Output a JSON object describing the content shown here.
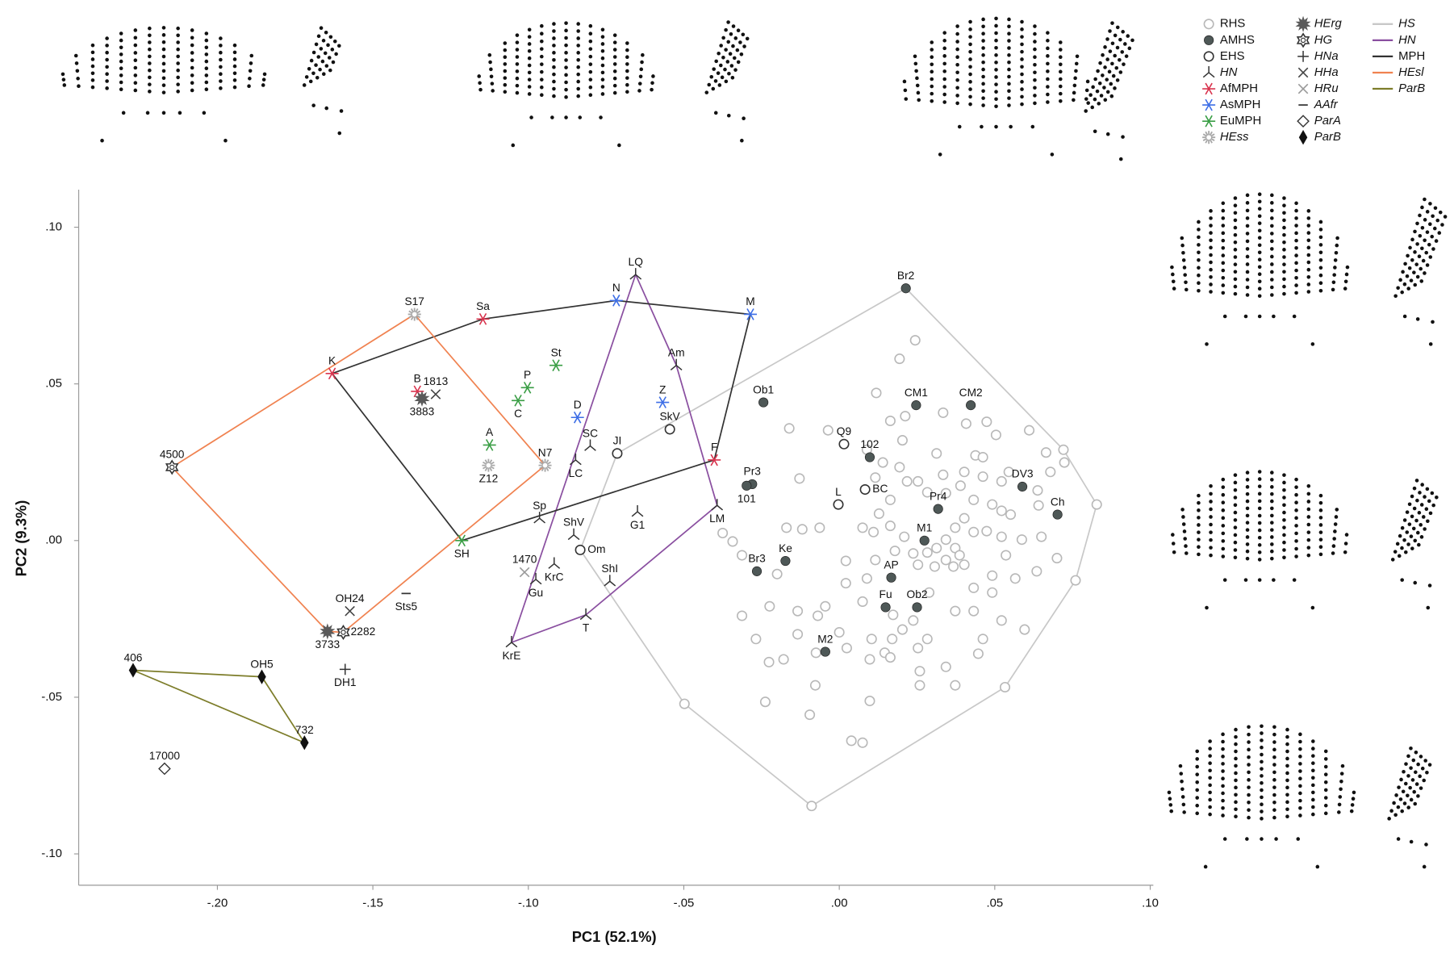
{
  "chart_data": {
    "type": "scatter",
    "xlabel": "PC1 (52.1%)",
    "ylabel": "PC2 (9.3%)",
    "xlim": [
      -0.2446,
      0.101
    ],
    "ylim": [
      -0.11,
      0.112
    ],
    "xticks": [
      {
        "value": -0.2,
        "label": "-.20"
      },
      {
        "value": -0.15,
        "label": "-.15"
      },
      {
        "value": -0.1,
        "label": "-.10"
      },
      {
        "value": -0.05,
        "label": "-.05"
      },
      {
        "value": 0,
        "label": ".00"
      },
      {
        "value": 0.05,
        "label": ".05"
      },
      {
        "value": 0.1,
        "label": ".10"
      }
    ],
    "yticks": [
      {
        "value": 0.1,
        "label": ".10"
      },
      {
        "value": 0.05,
        "label": ".05"
      },
      {
        "value": 0,
        "label": ".00"
      },
      {
        "value": -0.05,
        "label": "-.05"
      },
      {
        "value": -0.1,
        "label": "-.10"
      }
    ],
    "series": [
      {
        "name": "RHS",
        "marker": "circle-open",
        "color": "#b8b8b8",
        "italic": false,
        "x": [
          0.0244,
          0.0194,
          0.0119,
          0.0164,
          0.0212,
          -0.0161,
          -0.0036,
          0.0089,
          -0.0128,
          0.0203,
          0.0334,
          0.0408,
          0.0474,
          0.0504,
          0.0611,
          0.0665,
          0.0724,
          0.0438,
          0.0402,
          0.0462,
          0.0522,
          0.0545,
          0.0334,
          0.0253,
          0.0164,
          0.0116,
          0.0194,
          0.0218,
          0.0283,
          0.0343,
          0.039,
          0.0432,
          0.0492,
          0.0522,
          0.0551,
          0.0641,
          0.065,
          0.0587,
          0.0522,
          0.0474,
          0.0432,
          0.0402,
          0.0373,
          0.0343,
          0.0313,
          0.0373,
          0.0387,
          0.0402,
          0.0343,
          0.0283,
          0.0238,
          0.0253,
          0.0307,
          0.0367,
          0.0209,
          0.0164,
          0.0128,
          0.011,
          0.0116,
          0.0179,
          0.0075,
          0.0021,
          0.0021,
          0.0089,
          0.0075,
          0.0289,
          0.0432,
          0.0492,
          0.0566,
          0.0536,
          0.0492,
          0.0432,
          0.0373,
          0.0522,
          0.0596,
          0.0462,
          0.0283,
          0.0238,
          0.0173,
          0.0203,
          0.017,
          0.0104,
          0.0098,
          0.0146,
          0.0164,
          0.0253,
          0.0343,
          0.0259,
          0.0259,
          0.0373,
          0.0447,
          -0.0045,
          -0.0134,
          -0.0069,
          0.0,
          -0.0075,
          0.0024,
          -0.0134,
          -0.02,
          -0.0313,
          -0.0343,
          -0.0375,
          -0.0224,
          -0.0313,
          -0.0268,
          -0.0226,
          -0.0179,
          -0.0077,
          -0.0095,
          -0.0238,
          0.0098,
          0.0039,
          0.0075,
          -0.0063,
          -0.0119,
          -0.017,
          0.0635,
          0.07,
          0.0679,
          0.0638,
          0.0462,
          0.0313,
          0.014,
          0.0721,
          0.0828,
          0.076,
          0.0533,
          -0.0089,
          -0.0498
        ],
        "y": [
          0.0639,
          0.058,
          0.0471,
          0.0382,
          0.0397,
          0.0358,
          0.0352,
          0.029,
          0.0198,
          0.032,
          0.0408,
          0.0373,
          0.0379,
          0.0337,
          0.0352,
          0.0281,
          0.0249,
          0.0272,
          0.0219,
          0.0204,
          0.0189,
          0.0219,
          0.021,
          0.0189,
          0.013,
          0.0201,
          0.0234,
          0.0189,
          0.0154,
          0.0151,
          0.0175,
          0.013,
          0.0115,
          0.0095,
          0.0083,
          0.0112,
          0.0012,
          0.0003,
          0.0012,
          0.003,
          0.0027,
          0.0071,
          0.0041,
          0.0003,
          -0.0024,
          -0.0024,
          -0.0047,
          -0.0077,
          -0.0062,
          -0.0038,
          -0.0041,
          -0.0077,
          -0.0083,
          -0.0083,
          0.0012,
          0.0047,
          0.0086,
          0.0027,
          -0.0062,
          -0.0033,
          0.0041,
          -0.0065,
          -0.0136,
          -0.0121,
          -0.0195,
          -0.0166,
          -0.0151,
          -0.0112,
          -0.0121,
          -0.0047,
          -0.0166,
          -0.0225,
          -0.0225,
          -0.0255,
          -0.0284,
          -0.0314,
          -0.0314,
          -0.0255,
          -0.0237,
          -0.0284,
          -0.0314,
          -0.0314,
          -0.0379,
          -0.0358,
          -0.0373,
          -0.0343,
          -0.0403,
          -0.0417,
          -0.0462,
          -0.0462,
          -0.0361,
          -0.021,
          -0.0225,
          -0.024,
          -0.0293,
          -0.0358,
          -0.0343,
          -0.0299,
          -0.0107,
          -0.0047,
          -0.0003,
          0.0024,
          -0.021,
          -0.024,
          -0.0314,
          -0.0388,
          -0.0379,
          -0.0462,
          -0.0556,
          -0.0515,
          -0.0512,
          -0.0639,
          -0.0645,
          0.0041,
          0.0036,
          0.0041,
          -0.0098,
          -0.0056,
          0.0219,
          0.016,
          0.0266,
          0.0278,
          0.0249,
          0.029,
          0.0115,
          -0.0127,
          -0.0468,
          -0.0847,
          -0.0521
        ]
      },
      {
        "name": "AMHS",
        "marker": "circle-filled",
        "color": "#4e5857",
        "italic": false,
        "labels": [
          "Br2",
          "Ob1",
          "CM1",
          "CM2",
          "102",
          "Pr3",
          "101",
          "DV3",
          "Ch",
          "Pr4",
          "M1",
          "Ke",
          "Br3",
          "AP",
          "Fu",
          "Ob2",
          "M2"
        ],
        "x": [
          0.0214,
          -0.0244,
          0.0247,
          0.0423,
          0.0098,
          -0.028,
          -0.0298,
          0.0589,
          0.0702,
          0.0318,
          0.0274,
          -0.0173,
          -0.0265,
          0.0167,
          0.0149,
          0.025,
          -0.0045
        ],
        "y": [
          0.0805,
          0.0441,
          0.0432,
          0.0432,
          0.0266,
          0.018,
          0.0175,
          0.0172,
          0.0083,
          0.0101,
          0.0,
          -0.0065,
          -0.0098,
          -0.0118,
          -0.0213,
          -0.0213,
          -0.0355
        ]
      },
      {
        "name": "EHS",
        "marker": "circle-open",
        "color": "#333333",
        "italic": false,
        "labels": [
          "JI",
          "SkV",
          "Om",
          "Q9",
          "BC",
          "L"
        ],
        "x": [
          -0.0714,
          -0.0545,
          -0.0833,
          0.0015,
          0.0083,
          -0.0003
        ],
        "y": [
          0.0278,
          0.0355,
          -0.003,
          0.0308,
          0.0163,
          0.0115
        ]
      },
      {
        "name": "HN",
        "marker": "tri",
        "color": "#333333",
        "italic": true,
        "labels": [
          "LQ",
          "Am",
          "SC",
          "LC",
          "Sp",
          "ShV",
          "G1",
          "KrC",
          "Gu",
          "ShI",
          "T",
          "KrE",
          "LM"
        ],
        "x": [
          -0.0655,
          -0.0524,
          -0.0801,
          -0.0848,
          -0.0964,
          -0.0854,
          -0.0649,
          -0.0917,
          -0.0976,
          -0.0738,
          -0.0815,
          -0.1054,
          -0.0393
        ],
        "y": [
          0.0849,
          0.0559,
          0.0302,
          0.0257,
          0.0071,
          0.0018,
          0.0092,
          -0.0074,
          -0.0124,
          -0.013,
          -0.0237,
          -0.0325,
          0.0112
        ]
      },
      {
        "name": "AfMPH",
        "marker": "asterisk",
        "color": "#d9344e",
        "italic": false,
        "labels": [
          "Sa",
          "K",
          "B",
          "F"
        ],
        "x": [
          -0.1146,
          -0.1631,
          -0.1357,
          -0.0402
        ],
        "y": [
          0.0707,
          0.0533,
          0.0476,
          0.0257
        ]
      },
      {
        "name": "AsMPH",
        "marker": "asterisk",
        "color": "#3d6ee6",
        "italic": false,
        "labels": [
          "N",
          "M",
          "D",
          "Z"
        ],
        "x": [
          -0.0717,
          -0.0286,
          -0.0842,
          -0.0568
        ],
        "y": [
          0.0766,
          0.0722,
          0.0393,
          0.0441
        ]
      },
      {
        "name": "EuMPH",
        "marker": "asterisk",
        "color": "#3a9e45",
        "italic": false,
        "labels": [
          "St",
          "P",
          "C",
          "A",
          "SH"
        ],
        "x": [
          -0.0911,
          -0.1003,
          -0.1033,
          -0.1125,
          -0.1214
        ],
        "y": [
          0.0559,
          0.0488,
          0.0447,
          0.0305,
          0.0
        ]
      },
      {
        "name": "HEss",
        "marker": "starburst",
        "color": "#a8a8a8",
        "italic": true,
        "labels": [
          "S17",
          "N7",
          "Z12"
        ],
        "x": [
          -0.1366,
          -0.0946,
          -0.1128
        ],
        "y": [
          0.0722,
          0.024,
          0.024
        ]
      },
      {
        "name": "HErg",
        "marker": "star-filled",
        "color": "#5a5a5a",
        "italic": true,
        "labels": [
          "3883",
          "3733"
        ],
        "x": [
          -0.1342,
          -0.1646
        ],
        "y": [
          0.0453,
          -0.029
        ]
      },
      {
        "name": "HG",
        "marker": "star6",
        "color": "#333333",
        "italic": true,
        "labels": [
          "4500",
          "2282"
        ],
        "x": [
          -0.2146,
          -0.1595
        ],
        "y": [
          0.0234,
          -0.0293
        ]
      },
      {
        "name": "HNa",
        "marker": "plus",
        "color": "#333333",
        "italic": true,
        "labels": [
          "DH1"
        ],
        "x": [
          -0.1589
        ],
        "y": [
          -0.0411
        ]
      },
      {
        "name": "HHa",
        "marker": "x",
        "color": "#444444",
        "italic": true,
        "labels": [
          "1813",
          "OH24"
        ],
        "x": [
          -0.1298,
          -0.1574
        ],
        "y": [
          0.0467,
          -0.0225
        ]
      },
      {
        "name": "HRu",
        "marker": "x",
        "color": "#999999",
        "italic": true,
        "labels": [
          "1470"
        ],
        "x": [
          -0.1012
        ],
        "y": [
          -0.0101
        ]
      },
      {
        "name": "AAfr",
        "marker": "dash",
        "color": "#333333",
        "italic": true,
        "labels": [
          "Sts5"
        ],
        "x": [
          -0.1393
        ],
        "y": [
          -0.0169
        ]
      },
      {
        "name": "ParA",
        "marker": "diamond-open",
        "color": "#333333",
        "italic": true,
        "labels": [
          "17000"
        ],
        "x": [
          -0.217
        ],
        "y": [
          -0.0728
        ]
      },
      {
        "name": "ParB",
        "marker": "diamond-filled",
        "color": "#111111",
        "italic": true,
        "labels": [
          "406",
          "OH5",
          "732"
        ],
        "x": [
          -0.2271,
          -0.1857,
          -0.172
        ],
        "y": [
          -0.0414,
          -0.0435,
          -0.0645
        ]
      }
    ],
    "lines": [
      {
        "name": "HS",
        "color": "#c8c8c8",
        "italic": true,
        "x": [
          -0.0714,
          0.0214,
          0.0721,
          0.0828,
          0.076,
          0.0533,
          -0.0089,
          -0.0498,
          -0.0833
        ],
        "y": [
          0.0278,
          0.0805,
          0.029,
          0.0115,
          -0.0127,
          -0.0468,
          -0.0847,
          -0.0521,
          -0.003
        ]
      },
      {
        "name": "HN",
        "color": "#8a4fa0",
        "italic": true,
        "x": [
          -0.0655,
          -0.0524,
          -0.0393,
          -0.0815,
          -0.1054
        ],
        "y": [
          0.0849,
          0.0559,
          0.0112,
          -0.0237,
          -0.0325
        ]
      },
      {
        "name": "MPH",
        "color": "#333333",
        "italic": false,
        "x": [
          -0.1631,
          -0.1146,
          -0.0717,
          -0.0286,
          -0.0402,
          -0.1214
        ],
        "y": [
          0.0533,
          0.0707,
          0.0766,
          0.0722,
          0.0257,
          0.0
        ]
      },
      {
        "name": "HEsl",
        "color": "#f08250",
        "italic": true,
        "x": [
          -0.2146,
          -0.1366,
          -0.0946,
          -0.1595,
          -0.1646
        ],
        "y": [
          0.0234,
          0.0722,
          0.024,
          -0.0293,
          -0.029
        ]
      },
      {
        "name": "ParB",
        "color": "#7d7d2a",
        "italic": true,
        "x": [
          -0.2271,
          -0.1857,
          -0.172
        ],
        "y": [
          -0.0414,
          -0.0435,
          -0.0645
        ]
      }
    ]
  }
}
